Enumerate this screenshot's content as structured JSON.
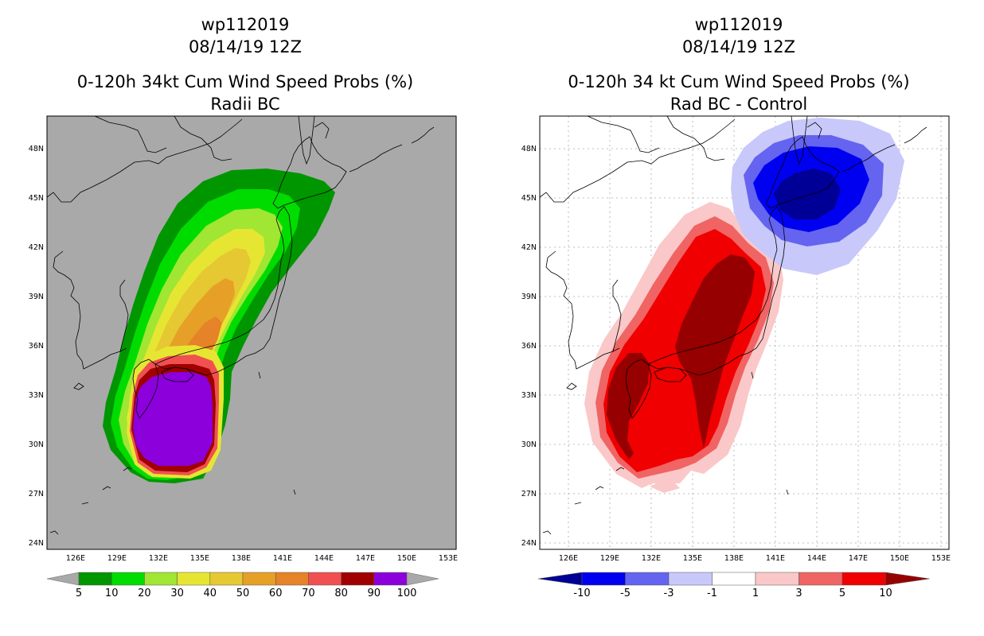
{
  "left_panel": {
    "title_lines": [
      "wp112019",
      "08/14/19 12Z",
      "0-120h 34kt Cum Wind Speed Probs (%)",
      "Radii BC"
    ],
    "background_color": "#a9a9a9",
    "colorbar": {
      "colors": [
        "#009600",
        "#00dc00",
        "#a0e632",
        "#e6e632",
        "#e6c832",
        "#e6a028",
        "#e68228",
        "#f05050",
        "#a00000",
        "#8c00dc"
      ],
      "labels": [
        "5",
        "10",
        "20",
        "30",
        "40",
        "50",
        "60",
        "70",
        "80",
        "90",
        "100"
      ]
    }
  },
  "right_panel": {
    "title_lines": [
      "wp112019",
      "08/14/19 12Z",
      "0-120h 34 kt Cum Wind Speed Probs (%)",
      "Rad BC - Control"
    ],
    "background_color": "#ffffff",
    "colorbar": {
      "colors": [
        "#000096",
        "#0000f0",
        "#6464f0",
        "#c8c8fa",
        "#ffffff",
        "#fac8c8",
        "#f06464",
        "#f00000",
        "#960000"
      ],
      "labels": [
        "-10",
        "-5",
        "-3",
        "-1",
        "1",
        "3",
        "5",
        "10"
      ]
    }
  },
  "map_axes": {
    "lon_labels": [
      "126E",
      "129E",
      "132E",
      "135E",
      "138E",
      "141E",
      "144E",
      "147E",
      "150E",
      "153E"
    ],
    "lat_labels": [
      "48N",
      "45N",
      "42N",
      "39N",
      "36N",
      "33N",
      "30N",
      "27N",
      "24N"
    ]
  }
}
